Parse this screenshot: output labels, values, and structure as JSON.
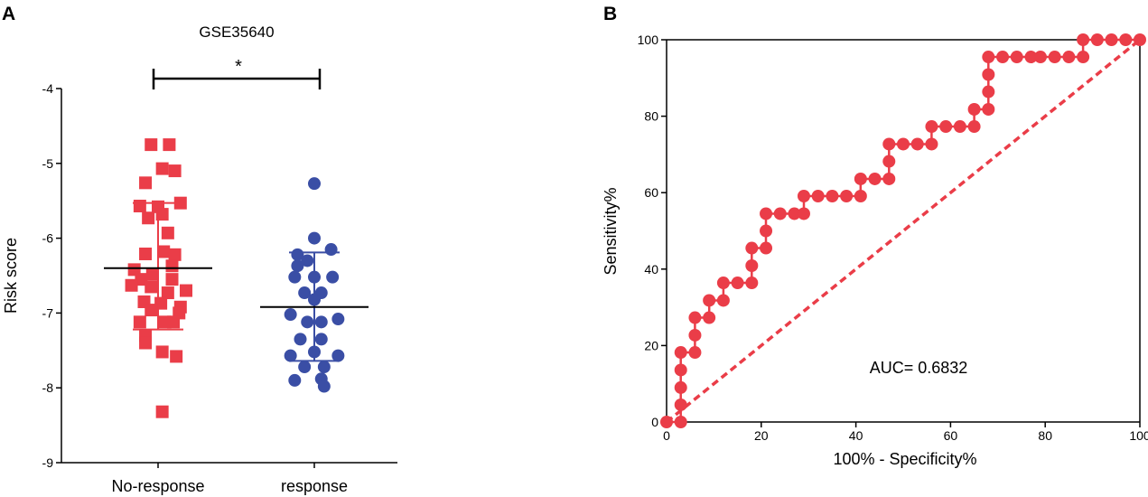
{
  "colors": {
    "no_response": "#ea3d48",
    "response": "#3a4ea5",
    "roc": "#ea3d48",
    "axis": "#000000",
    "mean_line": "#000000"
  },
  "chart_data": [
    {
      "panel_label": "A",
      "type": "scatter",
      "title": "GSE35640",
      "xlabel": "",
      "ylabel": "Risk score",
      "ylim": [
        -9,
        -4
      ],
      "yticks": [
        -9,
        -8,
        -7,
        -6,
        -5,
        -4
      ],
      "categories": [
        "No-response",
        "response"
      ],
      "significance": "*",
      "series": [
        {
          "name": "No-response",
          "marker": "square",
          "mean": -6.4,
          "sd_low": -7.22,
          "sd_high": -5.53,
          "points": [
            [
              -0.05,
              -4.75
            ],
            [
              0.08,
              -4.75
            ],
            [
              0.03,
              -5.07
            ],
            [
              0.12,
              -5.1
            ],
            [
              -0.09,
              -5.26
            ],
            [
              -0.13,
              -5.57
            ],
            [
              0.0,
              -5.58
            ],
            [
              0.16,
              -5.53
            ],
            [
              -0.07,
              -5.73
            ],
            [
              0.03,
              -5.68
            ],
            [
              0.07,
              -5.93
            ],
            [
              -0.09,
              -6.21
            ],
            [
              0.04,
              -6.18
            ],
            [
              0.12,
              -6.22
            ],
            [
              -0.17,
              -6.42
            ],
            [
              0.1,
              -6.37
            ],
            [
              -0.04,
              -6.48
            ],
            [
              0.2,
              -6.7
            ],
            [
              -0.12,
              -6.55
            ],
            [
              0.1,
              -6.55
            ],
            [
              -0.19,
              -6.63
            ],
            [
              -0.05,
              -6.65
            ],
            [
              0.07,
              -6.73
            ],
            [
              -0.1,
              -6.85
            ],
            [
              0.02,
              -6.87
            ],
            [
              0.16,
              -6.92
            ],
            [
              -0.05,
              -6.96
            ],
            [
              0.15,
              -7.0
            ],
            [
              -0.13,
              -7.12
            ],
            [
              0.05,
              -7.12
            ],
            [
              0.11,
              -7.12
            ],
            [
              -0.09,
              -7.3
            ],
            [
              -0.09,
              -7.4
            ],
            [
              0.03,
              -7.52
            ],
            [
              0.13,
              -7.58
            ],
            [
              0.03,
              -8.32
            ]
          ]
        },
        {
          "name": "response",
          "marker": "circle",
          "mean": -6.92,
          "sd_low": -7.64,
          "sd_high": -6.19,
          "points": [
            [
              0.0,
              -5.27
            ],
            [
              0.0,
              -6.0
            ],
            [
              -0.12,
              -6.22
            ],
            [
              0.12,
              -6.15
            ],
            [
              -0.12,
              -6.37
            ],
            [
              -0.05,
              -6.3
            ],
            [
              -0.14,
              -6.52
            ],
            [
              0.0,
              -6.52
            ],
            [
              0.13,
              -6.52
            ],
            [
              0.05,
              -6.73
            ],
            [
              -0.07,
              -6.73
            ],
            [
              0.0,
              -6.82
            ],
            [
              -0.17,
              -7.02
            ],
            [
              0.17,
              -7.08
            ],
            [
              -0.05,
              -7.12
            ],
            [
              0.05,
              -7.12
            ],
            [
              -0.1,
              -7.35
            ],
            [
              0.05,
              -7.35
            ],
            [
              -0.17,
              -7.57
            ],
            [
              0.17,
              -7.57
            ],
            [
              0.0,
              -7.52
            ],
            [
              -0.07,
              -7.72
            ],
            [
              0.07,
              -7.72
            ],
            [
              -0.14,
              -7.9
            ],
            [
              0.05,
              -7.88
            ],
            [
              0.07,
              -7.98
            ]
          ]
        }
      ]
    },
    {
      "panel_label": "B",
      "type": "line",
      "title": "",
      "xlabel": "100% - Specificity%",
      "ylabel": "Sensitivity%",
      "xlim": [
        0,
        100
      ],
      "ylim": [
        0,
        100
      ],
      "xticks": [
        0,
        20,
        40,
        60,
        80,
        100
      ],
      "yticks": [
        0,
        20,
        40,
        60,
        80,
        100
      ],
      "annotation": "AUC= 0.6832",
      "series": [
        {
          "name": "ROC curve",
          "marker": "circle",
          "x": [
            0,
            3,
            3,
            3,
            3,
            3,
            6,
            6,
            6,
            9,
            9,
            12,
            12,
            15,
            18,
            18,
            18,
            21,
            21,
            21,
            24,
            27,
            29,
            29,
            32,
            35,
            38,
            41,
            41,
            44,
            47,
            47,
            47,
            50,
            53,
            56,
            56,
            59,
            62,
            65,
            65,
            68,
            68,
            68,
            68,
            71,
            74,
            77,
            79,
            82,
            85,
            88,
            88,
            91,
            94,
            97,
            100
          ],
          "y": [
            0,
            0,
            4.5,
            9,
            13.6,
            18.2,
            18.2,
            22.7,
            27.3,
            27.3,
            31.8,
            31.8,
            36.4,
            36.4,
            36.4,
            40.9,
            45.5,
            45.5,
            50,
            54.5,
            54.5,
            54.5,
            54.5,
            59.1,
            59.1,
            59.1,
            59.1,
            59.1,
            63.6,
            63.6,
            63.6,
            68.2,
            72.7,
            72.7,
            72.7,
            72.7,
            77.3,
            77.3,
            77.3,
            77.3,
            81.8,
            81.8,
            86.4,
            90.9,
            95.5,
            95.5,
            95.5,
            95.5,
            95.5,
            95.5,
            95.5,
            95.5,
            100,
            100,
            100,
            100,
            100
          ]
        },
        {
          "name": "reference",
          "style": "dashed",
          "x": [
            0,
            100
          ],
          "y": [
            0,
            100
          ]
        }
      ]
    }
  ]
}
